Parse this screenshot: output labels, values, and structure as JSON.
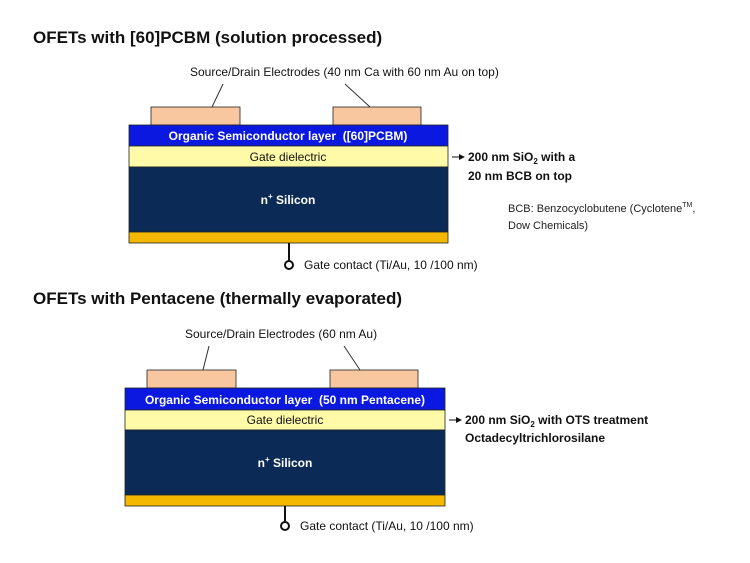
{
  "colors": {
    "electrode": "#f8c7a0",
    "semiconductor": "#0a18e0",
    "dielectric": "#fffaa8",
    "silicon": "#0b2a55",
    "gate_metal": "#f5b800"
  },
  "diagram1": {
    "title": "OFETs with [60]PCBM (solution processed)",
    "electrodes_label": "Source/Drain Electrodes (40 nm Ca with 60 nm Au on top)",
    "semiconductor_label": "Organic Semiconductor layer  ([60]PCBM)",
    "dielectric_label": "Gate dielectric",
    "silicon_label_main": "n",
    "silicon_label_sup": "+",
    "silicon_label_rest": " Silicon",
    "dielectric_note_line1_pre": "200 nm SiO",
    "dielectric_note_line1_sub": "2",
    "dielectric_note_line1_post": " with a",
    "dielectric_note_line2": "20 nm BCB on top",
    "bcb_note_line1_pre": "BCB: Benzocyclobutene (Cyclotene",
    "bcb_note_line1_sup": "TM",
    "bcb_note_line1_post": ",",
    "bcb_note_line2": "Dow Chemicals)",
    "gate_contact_label": "Gate contact (Ti/Au, 10 /100 nm)"
  },
  "diagram2": {
    "title": "OFETs with Pentacene (thermally evaporated)",
    "electrodes_label": "Source/Drain Electrodes (60 nm Au)",
    "semiconductor_label": "Organic Semiconductor layer  (50 nm Pentacene)",
    "dielectric_label": "Gate dielectric",
    "silicon_label_main": "n",
    "silicon_label_sup": "+",
    "silicon_label_rest": " Silicon",
    "dielectric_note_line1_pre": "200 nm SiO",
    "dielectric_note_line1_sub": "2",
    "dielectric_note_line1_post": " with OTS treatment",
    "dielectric_note_line2": "Octadecyltrichlorosilane",
    "gate_contact_label": "Gate contact (Ti/Au, 10 /100 nm)"
  }
}
